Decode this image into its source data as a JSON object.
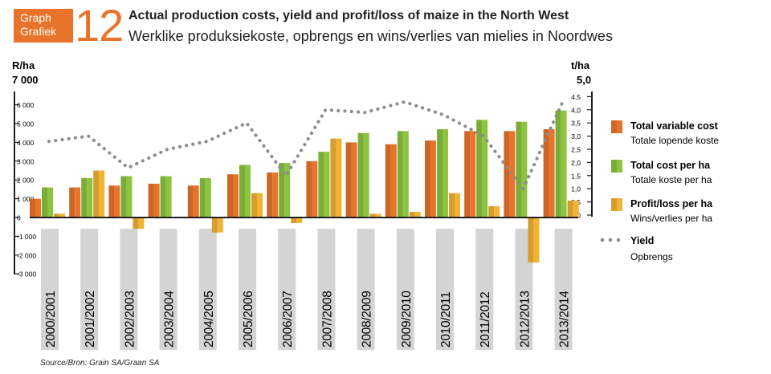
{
  "header": {
    "badge_line1": "Graph",
    "badge_line2": "Grafiek",
    "number": "12",
    "title_en": "Actual production costs, yield and profit/loss of maize in the North West",
    "title_af": "Werklike produksiekoste, opbrengs en wins/verlies van mielies in Noordwes"
  },
  "source": "Source/Bron: Grain SA/Graan SA",
  "colors": {
    "variable_cost": "#e8742c",
    "total_cost": "#8cc43f",
    "profit_loss": "#f2b233",
    "yield": "#8c8c8c",
    "band": "#d4d4d5",
    "brand": "#e8742c"
  },
  "chart_data": {
    "type": "bar",
    "categories": [
      "2000/2001",
      "2001/2002",
      "2002/2003",
      "2003/2004",
      "2004/2005",
      "2005/2006",
      "2006/2007",
      "2007/2008",
      "2008/2009",
      "2009/2010",
      "2010/2011",
      "2011/2012",
      "2012/2013",
      "2013/2014"
    ],
    "series": [
      {
        "name": "Total variable cost",
        "name_af": "Totale lopende koste",
        "values": [
          1000,
          1600,
          1700,
          1800,
          1700,
          2300,
          2400,
          3000,
          4000,
          3900,
          4100,
          4600,
          4600,
          4700
        ]
      },
      {
        "name": "Total cost per ha",
        "name_af": "Totale koste per ha",
        "values": [
          1600,
          2100,
          2200,
          2200,
          2100,
          2800,
          2900,
          3500,
          4500,
          4600,
          4700,
          5200,
          5100,
          5700
        ]
      },
      {
        "name": "Profit/loss per ha",
        "name_af": "Wins/verlies per ha",
        "values": [
          200,
          2500,
          -600,
          0,
          -800,
          1300,
          -300,
          4200,
          200,
          300,
          1300,
          600,
          -2400,
          900
        ]
      }
    ],
    "yield": {
      "name": "Yield",
      "name_af": "Opbrengs",
      "values": [
        2.8,
        3.0,
        1.8,
        2.5,
        2.8,
        3.5,
        1.5,
        4.0,
        3.9,
        4.3,
        3.8,
        3.0,
        1.0,
        4.3
      ]
    },
    "left_axis": {
      "label": "R/ha",
      "max_label": "7 000",
      "ylim": [
        -3000,
        7000
      ],
      "ticks": [
        "6 000",
        "5 000",
        "4 000",
        "3 000",
        "2 000",
        "1 000",
        "0",
        "-1 000",
        "-2 000",
        "-3 000"
      ]
    },
    "right_axis": {
      "label": "t/ha",
      "max_label": "5,0",
      "ylim": [
        0,
        5
      ],
      "ticks": [
        "4,5",
        "4,0",
        "3,5",
        "3,0",
        "2,5",
        "2,0",
        "1,5",
        "1,0",
        "0,5",
        "0"
      ]
    },
    "legend_position": "right"
  }
}
